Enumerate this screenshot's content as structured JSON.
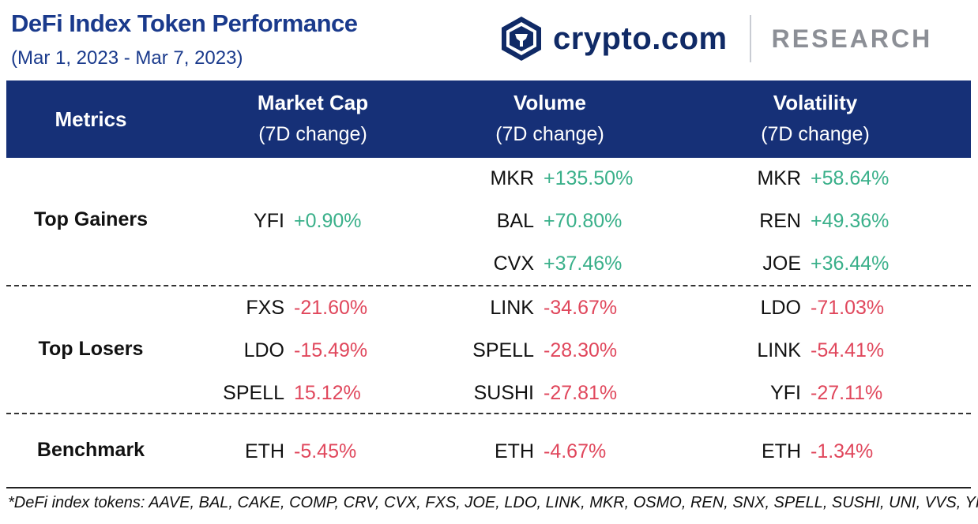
{
  "title": "DeFi Index Token Performance",
  "subtitle": "(Mar 1, 2023 - Mar 7, 2023)",
  "brand": {
    "name": "crypto.com",
    "section": "RESEARCH",
    "logo_icon": "crypto-com-lion-shield-icon"
  },
  "colors": {
    "header_bg": "#163077",
    "positive": "#3ab08a",
    "negative": "#e0475c",
    "title": "#1a3a8c"
  },
  "headers": {
    "metrics": "Metrics",
    "market_cap": {
      "line1": "Market Cap",
      "line2": "(7D change)"
    },
    "volume": {
      "line1": "Volume",
      "line2": "(7D change)"
    },
    "volatility": {
      "line1": "Volatility",
      "line2": "(7D change)"
    }
  },
  "rows": {
    "gainers": {
      "label": "Top Gainers",
      "market_cap": [
        {
          "token": "YFI",
          "value": "+0.90%"
        }
      ],
      "volume": [
        {
          "token": "MKR",
          "value": "+135.50%"
        },
        {
          "token": "BAL",
          "value": "+70.80%"
        },
        {
          "token": "CVX",
          "value": "+37.46%"
        }
      ],
      "volatility": [
        {
          "token": "MKR",
          "value": "+58.64%"
        },
        {
          "token": "REN",
          "value": "+49.36%"
        },
        {
          "token": "JOE",
          "value": "+36.44%"
        }
      ]
    },
    "losers": {
      "label": "Top Losers",
      "market_cap": [
        {
          "token": "FXS",
          "value": "-21.60%"
        },
        {
          "token": "LDO",
          "value": "-15.49%"
        },
        {
          "token": "SPELL",
          "value": "15.12%"
        }
      ],
      "volume": [
        {
          "token": "LINK",
          "value": "-34.67%"
        },
        {
          "token": "SPELL",
          "value": "-28.30%"
        },
        {
          "token": "SUSHI",
          "value": "-27.81%"
        }
      ],
      "volatility": [
        {
          "token": "LDO",
          "value": "-71.03%"
        },
        {
          "token": "LINK",
          "value": "-54.41%"
        },
        {
          "token": "YFI",
          "value": "-27.11%"
        }
      ]
    },
    "benchmark": {
      "label": "Benchmark",
      "market_cap": [
        {
          "token": "ETH",
          "value": "-5.45%"
        }
      ],
      "volume": [
        {
          "token": "ETH",
          "value": "-4.67%"
        }
      ],
      "volatility": [
        {
          "token": "ETH",
          "value": "-1.34%"
        }
      ]
    }
  },
  "footnote": "*DeFi index tokens: AAVE, BAL, CAKE, COMP, CRV, CVX, FXS, JOE, LDO, LINK, MKR, OSMO, REN, SNX, SPELL, SUSHI, UNI, VVS, YFI."
}
